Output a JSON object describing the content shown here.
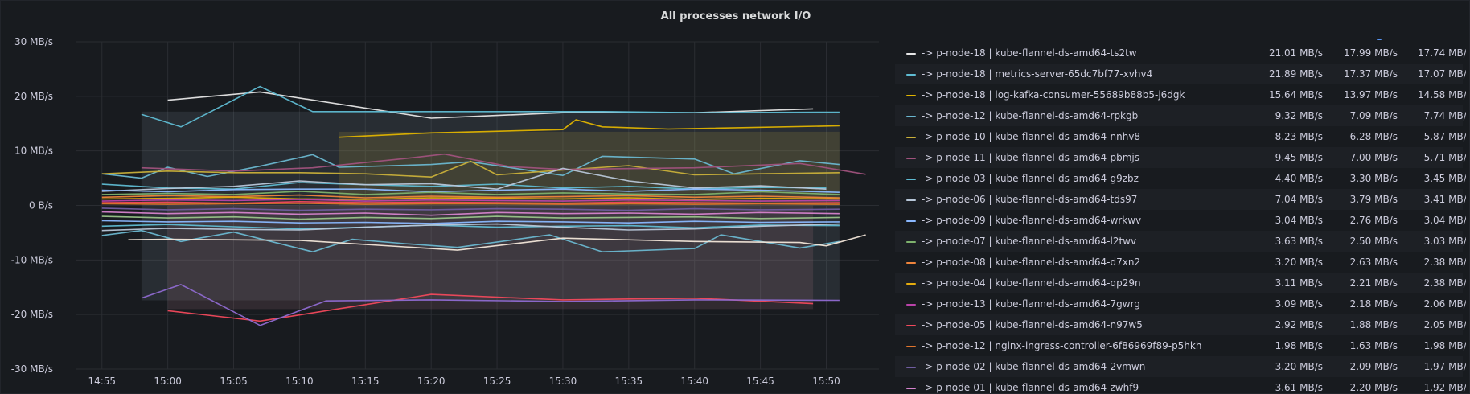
{
  "panel": {
    "title": "All processes network I/O"
  },
  "chart_data": {
    "type": "line",
    "title": "All processes network I/O",
    "xlabel": "",
    "ylabel": "",
    "yunit": "MB/s",
    "ylim": [
      -30,
      30
    ],
    "y_ticks": [
      "30 MB/s",
      "20 MB/s",
      "10 MB/s",
      "0 B/s",
      "-10 MB/s",
      "-20 MB/s",
      "-30 MB/s"
    ],
    "x_ticks": [
      "14:55",
      "15:00",
      "15:05",
      "15:10",
      "15:15",
      "15:20",
      "15:25",
      "15:30",
      "15:35",
      "15:40",
      "15:45",
      "15:50"
    ],
    "grid": true,
    "series": [
      {
        "color": "#e6e6e6",
        "x": [
          "15:00",
          "15:07",
          "15:20",
          "15:30",
          "15:40",
          "15:49"
        ],
        "values": [
          19.3,
          20.8,
          16.0,
          17.0,
          17.0,
          17.7
        ]
      },
      {
        "color": "#5fbcd3",
        "x": [
          "14:58",
          "15:01",
          "15:07",
          "15:11",
          "15:20",
          "15:33",
          "15:40",
          "15:51"
        ],
        "values": [
          16.7,
          14.4,
          21.8,
          17.2,
          17.2,
          17.2,
          17.0,
          17.1
        ]
      },
      {
        "color": "#e0b400",
        "x": [
          "15:13",
          "15:20",
          "15:30",
          "15:31",
          "15:33",
          "15:38",
          "15:51"
        ],
        "values": [
          12.5,
          13.3,
          13.9,
          15.7,
          14.4,
          14.0,
          14.6
        ]
      },
      {
        "color": "#6ab7d0",
        "x": [
          "14:55",
          "14:58",
          "15:00",
          "15:03",
          "15:07",
          "15:11",
          "15:13",
          "15:20",
          "15:23",
          "15:30",
          "15:33",
          "15:40",
          "15:43",
          "15:48",
          "15:51"
        ],
        "values": [
          5.8,
          5.0,
          7.0,
          5.3,
          7.2,
          9.3,
          7.0,
          7.5,
          8.0,
          5.5,
          9.0,
          8.5,
          5.8,
          8.2,
          7.5
        ]
      },
      {
        "color": "#c9b03a",
        "x": [
          "14:55",
          "15:00",
          "15:05",
          "15:10",
          "15:15",
          "15:20",
          "15:23",
          "15:25",
          "15:30",
          "15:35",
          "15:40",
          "15:45",
          "15:51"
        ],
        "values": [
          5.8,
          6.3,
          6.0,
          6.0,
          5.8,
          5.2,
          8.1,
          5.6,
          6.5,
          7.3,
          5.6,
          5.8,
          6.0
        ]
      },
      {
        "color": "#a0527d",
        "x": [
          "14:58",
          "15:05",
          "15:11",
          "15:18",
          "15:21",
          "15:26",
          "15:30",
          "15:40",
          "15:48",
          "15:53"
        ],
        "values": [
          6.9,
          6.3,
          6.9,
          8.6,
          9.4,
          7.1,
          6.6,
          6.9,
          7.7,
          5.7
        ]
      },
      {
        "color": "#5fbcd3",
        "x": [
          "14:55",
          "15:00",
          "15:05",
          "15:10",
          "15:15",
          "15:20",
          "15:25",
          "15:30",
          "15:35",
          "15:40",
          "15:45",
          "15:50"
        ],
        "values": [
          3.9,
          3.2,
          3.0,
          4.2,
          3.8,
          3.5,
          3.9,
          3.2,
          3.5,
          3.0,
          3.3,
          3.2
        ]
      },
      {
        "color": "#b8c7d9",
        "x": [
          "14:55",
          "15:00",
          "15:05",
          "15:10",
          "15:15",
          "15:20",
          "15:25",
          "15:30",
          "15:35",
          "15:40",
          "15:45",
          "15:50"
        ],
        "values": [
          2.6,
          3.1,
          3.5,
          4.5,
          3.8,
          4.0,
          3.0,
          6.8,
          4.5,
          3.2,
          3.6,
          3.0
        ]
      },
      {
        "color": "#8ab8ff",
        "x": [
          "14:55",
          "15:00",
          "15:05",
          "15:10",
          "15:15",
          "15:20",
          "15:25",
          "15:30",
          "15:35",
          "15:40",
          "15:45",
          "15:51"
        ],
        "values": [
          2.8,
          2.5,
          2.9,
          3.0,
          3.0,
          2.5,
          2.8,
          3.0,
          2.6,
          3.0,
          2.8,
          2.4
        ]
      },
      {
        "color": "#7eb26d",
        "x": [
          "14:55",
          "15:00",
          "15:05",
          "15:10",
          "15:15",
          "15:20",
          "15:25",
          "15:30",
          "15:35",
          "15:40",
          "15:45",
          "15:51"
        ],
        "values": [
          2.0,
          2.2,
          2.0,
          2.6,
          2.0,
          2.4,
          2.0,
          2.3,
          2.1,
          2.0,
          2.5,
          2.0
        ]
      },
      {
        "color": "#ef843c",
        "x": [
          "14:55",
          "15:00",
          "15:05",
          "15:10",
          "15:15",
          "15:20",
          "15:25",
          "15:30",
          "15:35",
          "15:40",
          "15:45",
          "15:51"
        ],
        "values": [
          1.5,
          1.8,
          1.6,
          1.9,
          1.4,
          1.7,
          1.5,
          1.6,
          1.8,
          1.5,
          1.7,
          1.4
        ]
      },
      {
        "color": "#e5ac0e",
        "x": [
          "14:55",
          "15:00",
          "15:05",
          "15:10",
          "15:15",
          "15:20",
          "15:25",
          "15:30",
          "15:35",
          "15:40",
          "15:45",
          "15:51"
        ],
        "values": [
          1.2,
          1.3,
          1.5,
          1.2,
          1.1,
          1.4,
          1.3,
          1.2,
          1.4,
          1.1,
          1.3,
          1.2
        ]
      },
      {
        "color": "#ba43a9",
        "x": [
          "14:55",
          "15:00",
          "15:05",
          "15:10",
          "15:15",
          "15:20",
          "15:25",
          "15:30",
          "15:35",
          "15:40",
          "15:45",
          "15:51"
        ],
        "values": [
          0.8,
          1.0,
          0.9,
          1.1,
          0.8,
          1.0,
          0.9,
          0.8,
          1.0,
          0.9,
          0.8,
          0.9
        ]
      },
      {
        "color": "#f2495c",
        "x": [
          "14:55",
          "15:00",
          "15:05",
          "15:10",
          "15:15",
          "15:20",
          "15:25",
          "15:30",
          "15:35",
          "15:40",
          "15:45",
          "15:51"
        ],
        "values": [
          0.5,
          0.6,
          0.4,
          0.7,
          0.5,
          0.6,
          0.5,
          0.4,
          0.6,
          0.5,
          0.4,
          0.5
        ]
      },
      {
        "color": "#e0752d",
        "x": [
          "14:55",
          "15:00",
          "15:05",
          "15:10",
          "15:15",
          "15:20",
          "15:25",
          "15:30",
          "15:35",
          "15:40",
          "15:45",
          "15:51"
        ],
        "values": [
          0.3,
          0.2,
          0.3,
          0.4,
          0.2,
          0.3,
          0.3,
          0.2,
          0.3,
          0.2,
          0.3,
          0.2
        ]
      },
      {
        "color": "#705da0",
        "x": [
          "14:55",
          "15:00",
          "15:05",
          "15:10",
          "15:15",
          "15:20",
          "15:25",
          "15:30",
          "15:35",
          "15:40",
          "15:45",
          "15:51"
        ],
        "values": [
          -0.5,
          -0.8,
          -0.6,
          -0.9,
          -0.7,
          -0.8,
          -0.6,
          -0.7,
          -0.9,
          -0.6,
          -0.8,
          -0.7
        ]
      },
      {
        "color": "#d683ce",
        "x": [
          "14:55",
          "15:00",
          "15:05",
          "15:10",
          "15:15",
          "15:20",
          "15:25",
          "15:30",
          "15:35",
          "15:40",
          "15:45",
          "15:51"
        ],
        "values": [
          -1.2,
          -1.5,
          -1.3,
          -1.6,
          -1.4,
          -1.8,
          -1.3,
          -1.5,
          -1.4,
          -1.6,
          -1.3,
          -1.5
        ]
      },
      {
        "color": "#9ac48a",
        "x": [
          "14:55",
          "15:00",
          "15:05",
          "15:10",
          "15:15",
          "15:20",
          "15:25",
          "15:30",
          "15:35",
          "15:40",
          "15:45",
          "15:51"
        ],
        "values": [
          -2.0,
          -2.3,
          -2.1,
          -2.5,
          -2.2,
          -2.4,
          -2.0,
          -2.3,
          -2.2,
          -2.1,
          -2.4,
          -2.2
        ]
      },
      {
        "color": "#8ab8ff",
        "x": [
          "14:55",
          "15:00",
          "15:05",
          "15:10",
          "15:15",
          "15:20",
          "15:25",
          "15:30",
          "15:35",
          "15:40",
          "15:45",
          "15:51"
        ],
        "values": [
          -2.8,
          -3.0,
          -2.9,
          -3.2,
          -3.1,
          -3.3,
          -2.9,
          -3.0,
          -3.2,
          -2.9,
          -3.1,
          -3.0
        ]
      },
      {
        "color": "#5fbcd3",
        "x": [
          "14:55",
          "15:00",
          "15:05",
          "15:10",
          "15:15",
          "15:20",
          "15:25",
          "15:30",
          "15:35",
          "15:40",
          "15:45",
          "15:51"
        ],
        "values": [
          -3.8,
          -3.5,
          -3.9,
          -4.3,
          -4.0,
          -3.6,
          -4.0,
          -3.8,
          -3.7,
          -4.1,
          -3.6,
          -3.7
        ]
      },
      {
        "color": "#b8c7d9",
        "x": [
          "14:55",
          "15:00",
          "15:05",
          "15:10",
          "15:15",
          "15:20",
          "15:25",
          "15:30",
          "15:35",
          "15:40",
          "15:45",
          "15:51"
        ],
        "values": [
          -4.6,
          -4.2,
          -4.4,
          -4.5,
          -4.0,
          -3.6,
          -3.4,
          -4.0,
          -4.5,
          -4.3,
          -3.8,
          -3.4
        ]
      },
      {
        "color": "#6ab7d0",
        "x": [
          "14:55",
          "14:58",
          "15:01",
          "15:05",
          "15:11",
          "15:14",
          "15:18",
          "15:22",
          "15:29",
          "15:33",
          "15:40",
          "15:42",
          "15:48",
          "15:51"
        ],
        "values": [
          -5.5,
          -4.6,
          -6.6,
          -4.9,
          -8.5,
          -6.2,
          -7.0,
          -7.7,
          -5.4,
          -8.5,
          -7.9,
          -5.4,
          -7.8,
          -6.6
        ]
      },
      {
        "color": "#f2e6d9",
        "x": [
          "14:57",
          "15:00",
          "15:10",
          "15:22",
          "15:30",
          "15:40",
          "15:48",
          "15:50",
          "15:53"
        ],
        "values": [
          -6.3,
          -6.2,
          -6.4,
          -8.2,
          -6.0,
          -6.6,
          -6.8,
          -7.4,
          -5.4
        ]
      },
      {
        "color": "#f2495c",
        "x": [
          "15:00",
          "15:07",
          "15:20",
          "15:30",
          "15:40",
          "15:49"
        ],
        "values": [
          -19.3,
          -21.2,
          -16.3,
          -17.3,
          -17.0,
          -18.0
        ]
      },
      {
        "color": "#8f6ad1",
        "x": [
          "14:58",
          "15:01",
          "15:07",
          "15:12",
          "15:20",
          "15:30",
          "15:40",
          "15:51"
        ],
        "values": [
          -17.0,
          -14.5,
          -22.0,
          -17.5,
          -17.3,
          -17.6,
          -17.3,
          -17.4
        ]
      }
    ],
    "fills": [
      {
        "color": "#7a8f9a",
        "x0": "14:58",
        "x1": "15:51",
        "top": 17.2,
        "bottom": -17.4
      },
      {
        "color": "#b37a8a",
        "x0": "15:00",
        "x1": "15:49",
        "top": 0,
        "bottom": -19.0
      },
      {
        "color": "#c8b040",
        "x0": "15:13",
        "x1": "15:51",
        "top": 13.5,
        "bottom": 0
      }
    ]
  },
  "legend": {
    "rows": [
      {
        "color": "#e6e6e6",
        "label": "-> p-node-18 | kube-flannel-ds-amd64-ts2tw",
        "v1": "21.01 MB/s",
        "v2": "17.99 MB/s",
        "v3": "17.74 MB/s"
      },
      {
        "color": "#5fbcd3",
        "label": "-> p-node-18 | metrics-server-65dc7bf77-xvhv4",
        "v1": "21.89 MB/s",
        "v2": "17.37 MB/s",
        "v3": "17.07 MB/s"
      },
      {
        "color": "#e0b400",
        "label": "-> p-node-18 | log-kafka-consumer-55689b88b5-j6dgk",
        "v1": "15.64 MB/s",
        "v2": "13.97 MB/s",
        "v3": "14.58 MB/s"
      },
      {
        "color": "#6ab7d0",
        "label": "-> p-node-12 | kube-flannel-ds-amd64-rpkgb",
        "v1": "9.32 MB/s",
        "v2": "7.09 MB/s",
        "v3": "7.74 MB/s"
      },
      {
        "color": "#c9b03a",
        "label": "-> p-node-10 | kube-flannel-ds-amd64-nnhv8",
        "v1": "8.23 MB/s",
        "v2": "6.28 MB/s",
        "v3": "5.87 MB/s"
      },
      {
        "color": "#a0527d",
        "label": "-> p-node-11 | kube-flannel-ds-amd64-pbmjs",
        "v1": "9.45 MB/s",
        "v2": "7.00 MB/s",
        "v3": "5.71 MB/s"
      },
      {
        "color": "#5fbcd3",
        "label": "-> p-node-03 | kube-flannel-ds-amd64-g9zbz",
        "v1": "4.40 MB/s",
        "v2": "3.30 MB/s",
        "v3": "3.45 MB/s"
      },
      {
        "color": "#b8c7d9",
        "label": "-> p-node-06 | kube-flannel-ds-amd64-tds97",
        "v1": "7.04 MB/s",
        "v2": "3.79 MB/s",
        "v3": "3.41 MB/s"
      },
      {
        "color": "#8ab8ff",
        "label": "-> p-node-09 | kube-flannel-ds-amd64-wrkwv",
        "v1": "3.04 MB/s",
        "v2": "2.76 MB/s",
        "v3": "3.04 MB/s"
      },
      {
        "color": "#7eb26d",
        "label": "-> p-node-07 | kube-flannel-ds-amd64-l2twv",
        "v1": "3.63 MB/s",
        "v2": "2.50 MB/s",
        "v3": "3.03 MB/s"
      },
      {
        "color": "#ef843c",
        "label": "-> p-node-08 | kube-flannel-ds-amd64-d7xn2",
        "v1": "3.20 MB/s",
        "v2": "2.63 MB/s",
        "v3": "2.38 MB/s"
      },
      {
        "color": "#e5ac0e",
        "label": "-> p-node-04 | kube-flannel-ds-amd64-qp29n",
        "v1": "3.11 MB/s",
        "v2": "2.21 MB/s",
        "v3": "2.38 MB/s"
      },
      {
        "color": "#ba43a9",
        "label": "-> p-node-13 | kube-flannel-ds-amd64-7gwrg",
        "v1": "3.09 MB/s",
        "v2": "2.18 MB/s",
        "v3": "2.06 MB/s"
      },
      {
        "color": "#f2495c",
        "label": "-> p-node-05 | kube-flannel-ds-amd64-n97w5",
        "v1": "2.92 MB/s",
        "v2": "1.88 MB/s",
        "v3": "2.05 MB/s"
      },
      {
        "color": "#e0752d",
        "label": "-> p-node-12 | nginx-ingress-controller-6f86969f89-p5hkh",
        "v1": "1.98 MB/s",
        "v2": "1.63 MB/s",
        "v3": "1.98 MB/s"
      },
      {
        "color": "#705da0",
        "label": "-> p-node-02 | kube-flannel-ds-amd64-2vmwn",
        "v1": "3.20 MB/s",
        "v2": "2.09 MB/s",
        "v3": "1.97 MB/s"
      },
      {
        "color": "#d683ce",
        "label": "-> p-node-01 | kube-flannel-ds-amd64-zwhf9",
        "v1": "3.61 MB/s",
        "v2": "2.20 MB/s",
        "v3": "1.92 MB/s"
      }
    ]
  }
}
